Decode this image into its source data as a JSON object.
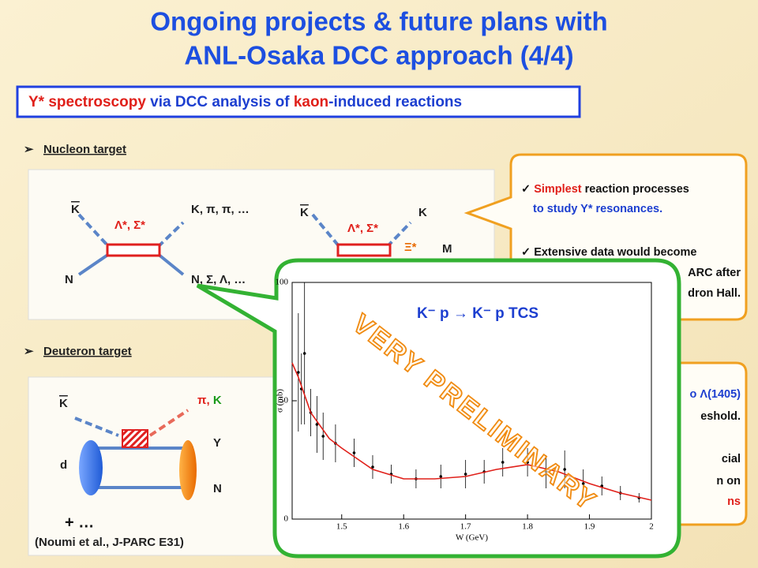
{
  "title": [
    "Ongoing projects & future plans with",
    "ANL-Osaka DCC approach (4/4)"
  ],
  "banner": [
    "Y* spectroscopy",
    " via DCC analysis of ",
    "kaon",
    "-induced reactions"
  ],
  "sections": {
    "nucleon": "Nucleon target",
    "deuteron": "Deuteron target"
  },
  "diagram1": {
    "kbar": "K",
    "n": "N",
    "res": "Λ*, Σ*",
    "out_top": "K, π, π, …",
    "out_bottom": "N, Σ, Λ, …"
  },
  "diagram2": {
    "kbar": "K",
    "res": "Λ*, Σ*",
    "k": "K",
    "xi": "Ξ*",
    "m": "M"
  },
  "diagram3": {
    "kbar": "K",
    "pi": "π",
    "comma": ", ",
    "k": "K",
    "y": "Y",
    "d": "d",
    "n": "N",
    "plus": "+ …",
    "ref": "(Noumi et al., J-PARC E31)"
  },
  "callout1": [
    "Simplest",
    " reaction processes",
    "to study Y* resonances.",
    "Extensive data would become",
    "ARC after",
    "dron Hall."
  ],
  "callout2": [
    "o Λ(1405)",
    "eshold.",
    "cial",
    "n on",
    "ns"
  ],
  "chart_data": {
    "type": "scatter",
    "title": "K⁻ p → K⁻ p TCS",
    "annotation": "VERY PRELIMINARY",
    "x_label": "W (GeV)",
    "y_label": "σ (mb)",
    "xlim": [
      1.42,
      2.0
    ],
    "ylim": [
      0,
      100
    ],
    "xticks": [
      1.5,
      1.6,
      1.7,
      1.8,
      1.9,
      2
    ],
    "yticks": [
      0,
      50,
      100
    ],
    "curve": {
      "color": "#e0201a",
      "x": [
        1.42,
        1.43,
        1.45,
        1.48,
        1.5,
        1.55,
        1.6,
        1.65,
        1.7,
        1.75,
        1.8,
        1.85,
        1.9,
        1.95,
        2.0
      ],
      "values": [
        66,
        60,
        45,
        34,
        30,
        21,
        17,
        17,
        18,
        21,
        23,
        20,
        15,
        11,
        8
      ]
    },
    "points": {
      "color": "#000",
      "x": [
        1.43,
        1.435,
        1.44,
        1.45,
        1.46,
        1.47,
        1.49,
        1.52,
        1.55,
        1.58,
        1.62,
        1.66,
        1.7,
        1.73,
        1.76,
        1.8,
        1.83,
        1.86,
        1.89,
        1.92,
        1.95,
        1.98
      ],
      "values": [
        62,
        55,
        70,
        45,
        40,
        35,
        32,
        28,
        22,
        19,
        17,
        18,
        19,
        20,
        24,
        24,
        20,
        21,
        15,
        14,
        11,
        9
      ],
      "errors": [
        25,
        15,
        30,
        10,
        12,
        10,
        8,
        6,
        5,
        4,
        4,
        5,
        6,
        5,
        6,
        6,
        7,
        8,
        6,
        4,
        3,
        2
      ]
    }
  }
}
